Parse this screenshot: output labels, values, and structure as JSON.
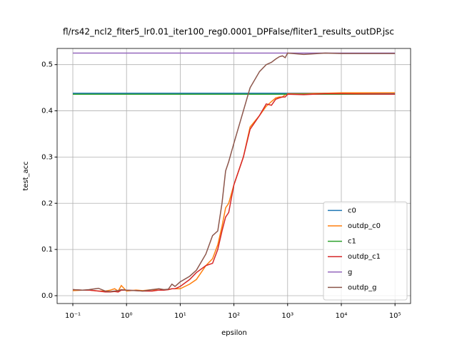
{
  "chart_data": {
    "type": "line",
    "title": "fl/rs42_ncl2_fiter5_lr0.01_iter100_reg0.0001_DPFalse/fliter1_results_outDP.jsc",
    "xlabel": "epsilon",
    "ylabel": "test_acc",
    "xscale": "log",
    "grid": true,
    "legend": "lower right",
    "xlim": [
      0.051,
      195000
    ],
    "ylim": [
      -0.017,
      0.535
    ],
    "xticks": [
      {
        "value": 0.1,
        "label": "10⁻¹"
      },
      {
        "value": 1,
        "label": "10⁰"
      },
      {
        "value": 10,
        "label": "10¹"
      },
      {
        "value": 100,
        "label": "10²"
      },
      {
        "value": 1000,
        "label": "10³"
      },
      {
        "value": 10000,
        "label": "10⁴"
      },
      {
        "value": 100000,
        "label": "10⁵"
      }
    ],
    "yticks": [
      {
        "value": 0,
        "label": "0.0"
      },
      0.1,
      0.2,
      0.3,
      0.4,
      0.5
    ],
    "x": [
      0.1,
      0.15,
      0.2,
      0.3,
      0.4,
      0.5,
      0.6,
      0.7,
      0.8,
      1,
      1.5,
      2,
      3,
      4,
      5,
      6,
      7,
      8,
      10,
      15,
      20,
      30,
      40,
      50,
      60,
      70,
      80,
      100,
      150,
      200,
      300,
      400,
      500,
      600,
      700,
      800,
      900,
      1000,
      2000,
      5000,
      10000,
      100000
    ],
    "series": [
      {
        "name": "c0",
        "color": "#1f77b4",
        "values": [
          0.438,
          0.438,
          0.438,
          0.438,
          0.438,
          0.438,
          0.438,
          0.438,
          0.438,
          0.438,
          0.438,
          0.438,
          0.438,
          0.438,
          0.438,
          0.438,
          0.438,
          0.438,
          0.438,
          0.438,
          0.438,
          0.438,
          0.438,
          0.438,
          0.438,
          0.438,
          0.438,
          0.438,
          0.438,
          0.438,
          0.438,
          0.438,
          0.438,
          0.438,
          0.438,
          0.438,
          0.438,
          0.438,
          0.438,
          0.438,
          0.438,
          0.438
        ]
      },
      {
        "name": "outdp_c0",
        "color": "#ff7f0e",
        "values": [
          0.011,
          0.012,
          0.012,
          0.01,
          0.01,
          0.012,
          0.015,
          0.01,
          0.022,
          0.01,
          0.012,
          0.011,
          0.013,
          0.012,
          0.013,
          0.013,
          0.015,
          0.015,
          0.015,
          0.025,
          0.035,
          0.065,
          0.08,
          0.11,
          0.15,
          0.19,
          0.2,
          0.24,
          0.3,
          0.365,
          0.39,
          0.41,
          0.42,
          0.428,
          0.43,
          0.43,
          0.435,
          0.437,
          0.437,
          0.438,
          0.439,
          0.439
        ]
      },
      {
        "name": "c1",
        "color": "#2ca02c",
        "values": [
          0.436,
          0.436,
          0.436,
          0.436,
          0.436,
          0.436,
          0.436,
          0.436,
          0.436,
          0.436,
          0.436,
          0.436,
          0.436,
          0.436,
          0.436,
          0.436,
          0.436,
          0.436,
          0.436,
          0.436,
          0.436,
          0.436,
          0.436,
          0.436,
          0.436,
          0.436,
          0.436,
          0.436,
          0.436,
          0.436,
          0.436,
          0.436,
          0.436,
          0.436,
          0.436,
          0.436,
          0.436,
          0.436,
          0.436,
          0.436,
          0.436,
          0.436
        ]
      },
      {
        "name": "outdp_c1",
        "color": "#d62728",
        "values": [
          0.013,
          0.012,
          0.012,
          0.01,
          0.008,
          0.008,
          0.009,
          0.008,
          0.012,
          0.012,
          0.011,
          0.01,
          0.01,
          0.012,
          0.012,
          0.013,
          0.015,
          0.015,
          0.02,
          0.035,
          0.05,
          0.065,
          0.07,
          0.1,
          0.14,
          0.17,
          0.18,
          0.24,
          0.3,
          0.36,
          0.39,
          0.415,
          0.412,
          0.425,
          0.428,
          0.43,
          0.43,
          0.436,
          0.435,
          0.437,
          0.437,
          0.436
        ]
      },
      {
        "name": "g",
        "color": "#9467bd",
        "values": [
          0.525,
          0.525,
          0.525,
          0.525,
          0.525,
          0.525,
          0.525,
          0.525,
          0.525,
          0.525,
          0.525,
          0.525,
          0.525,
          0.525,
          0.525,
          0.525,
          0.525,
          0.525,
          0.525,
          0.525,
          0.525,
          0.525,
          0.525,
          0.525,
          0.525,
          0.525,
          0.525,
          0.525,
          0.525,
          0.525,
          0.525,
          0.525,
          0.525,
          0.525,
          0.525,
          0.525,
          0.525,
          0.525,
          0.525,
          0.525,
          0.525,
          0.525
        ]
      },
      {
        "name": "outdp_g",
        "color": "#8c564b",
        "values": [
          0.013,
          0.012,
          0.013,
          0.016,
          0.01,
          0.009,
          0.01,
          0.011,
          0.013,
          0.012,
          0.011,
          0.01,
          0.013,
          0.015,
          0.013,
          0.014,
          0.025,
          0.02,
          0.03,
          0.042,
          0.055,
          0.09,
          0.13,
          0.14,
          0.2,
          0.27,
          0.29,
          0.33,
          0.4,
          0.45,
          0.485,
          0.5,
          0.505,
          0.512,
          0.517,
          0.519,
          0.515,
          0.525,
          0.522,
          0.525,
          0.524,
          0.524
        ]
      }
    ]
  }
}
